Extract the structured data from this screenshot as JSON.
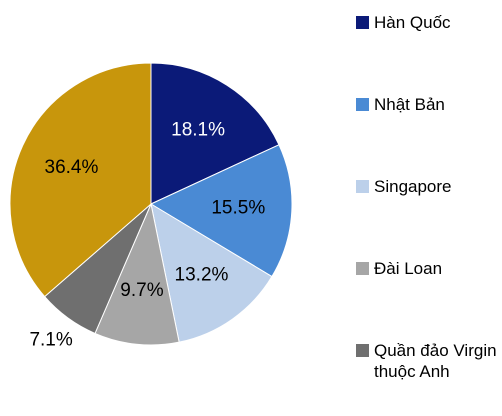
{
  "chart_data": {
    "type": "pie",
    "categories": [
      "Hàn Quốc",
      "Nhật Bản",
      "Singapore",
      "Đài Loan",
      "Quần đảo Virgin thuộc Anh",
      null
    ],
    "values": [
      18.1,
      15.5,
      13.2,
      9.7,
      7.1,
      36.4
    ],
    "value_labels": [
      "18.1%",
      "15.5%",
      "13.2%",
      "9.7%",
      "7.1%",
      "36.4%"
    ],
    "colors": [
      "#0b1a78",
      "#4a8ad4",
      "#bcd0ea",
      "#a6a6a6",
      "#6f6f6f",
      "#c8960c"
    ],
    "legend": "right"
  }
}
